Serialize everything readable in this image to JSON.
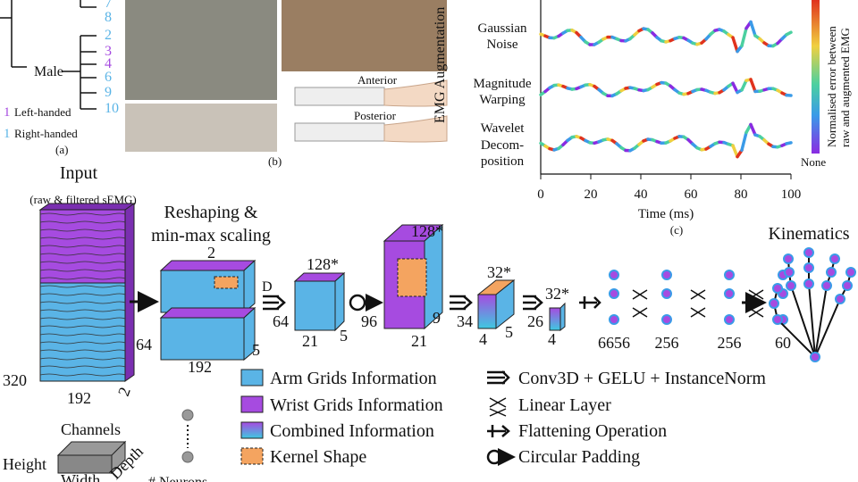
{
  "panel_a": {
    "subjects_top": [
      "7",
      "8"
    ],
    "male_label": "Male",
    "subjects_male": [
      "2",
      "3",
      "4",
      "6",
      "9",
      "10"
    ],
    "left_marker": "1",
    "left_label": "Left-handed",
    "right_marker": "1",
    "right_label": "Right-handed",
    "caption": "(a)"
  },
  "panel_b": {
    "anterior": "Anterior",
    "posterior": "Posterior",
    "caption": "(b)"
  },
  "panel_c": {
    "y_label": "EMG Augmentation",
    "rows": [
      [
        "Gaussian",
        "Noise"
      ],
      [
        "Magnitude",
        "Warping"
      ],
      [
        "Wavelet",
        "Decom-",
        "position"
      ]
    ],
    "x_ticks": [
      0,
      20,
      40,
      60,
      80,
      100
    ],
    "x_label": "Time (ms)",
    "colorbar_label": [
      "Normalised error between",
      "raw and augmented EMG"
    ],
    "colorbar_min": "None",
    "caption": "(c)"
  },
  "pipeline": {
    "input_title": "Input",
    "input_sub": "(raw & filtered sEMG)",
    "input_dims": [
      "320",
      "192",
      "2"
    ],
    "reshape_title": [
      "Reshaping &",
      "min-max scaling"
    ],
    "reshape_dims": [
      "2",
      "64",
      "192",
      "5"
    ],
    "d_label": "D",
    "conv1_dims": [
      "128*",
      "64",
      "21",
      "5"
    ],
    "conv2_dims": [
      "128*",
      "96",
      "21",
      "9"
    ],
    "conv3_dims": [
      "32*",
      "34",
      "4",
      "5"
    ],
    "conv4_dims": [
      "32*",
      "26",
      "4"
    ],
    "neurons": [
      "6656",
      "256",
      "256",
      "60"
    ],
    "output_title": "Kinematics"
  },
  "legend": {
    "left": [
      "Arm Grids Information",
      "Wrist Grids Information",
      "Combined Information",
      "Kernel Shape"
    ],
    "right": [
      "Conv3D + GELU + InstanceNorm",
      "Linear Layer",
      "Flattening Operation",
      "Circular Padding"
    ]
  },
  "key": {
    "channels": "Channels",
    "height": "Height",
    "width": "Width",
    "depth": "Depth",
    "neurons": "# Neurons"
  }
}
